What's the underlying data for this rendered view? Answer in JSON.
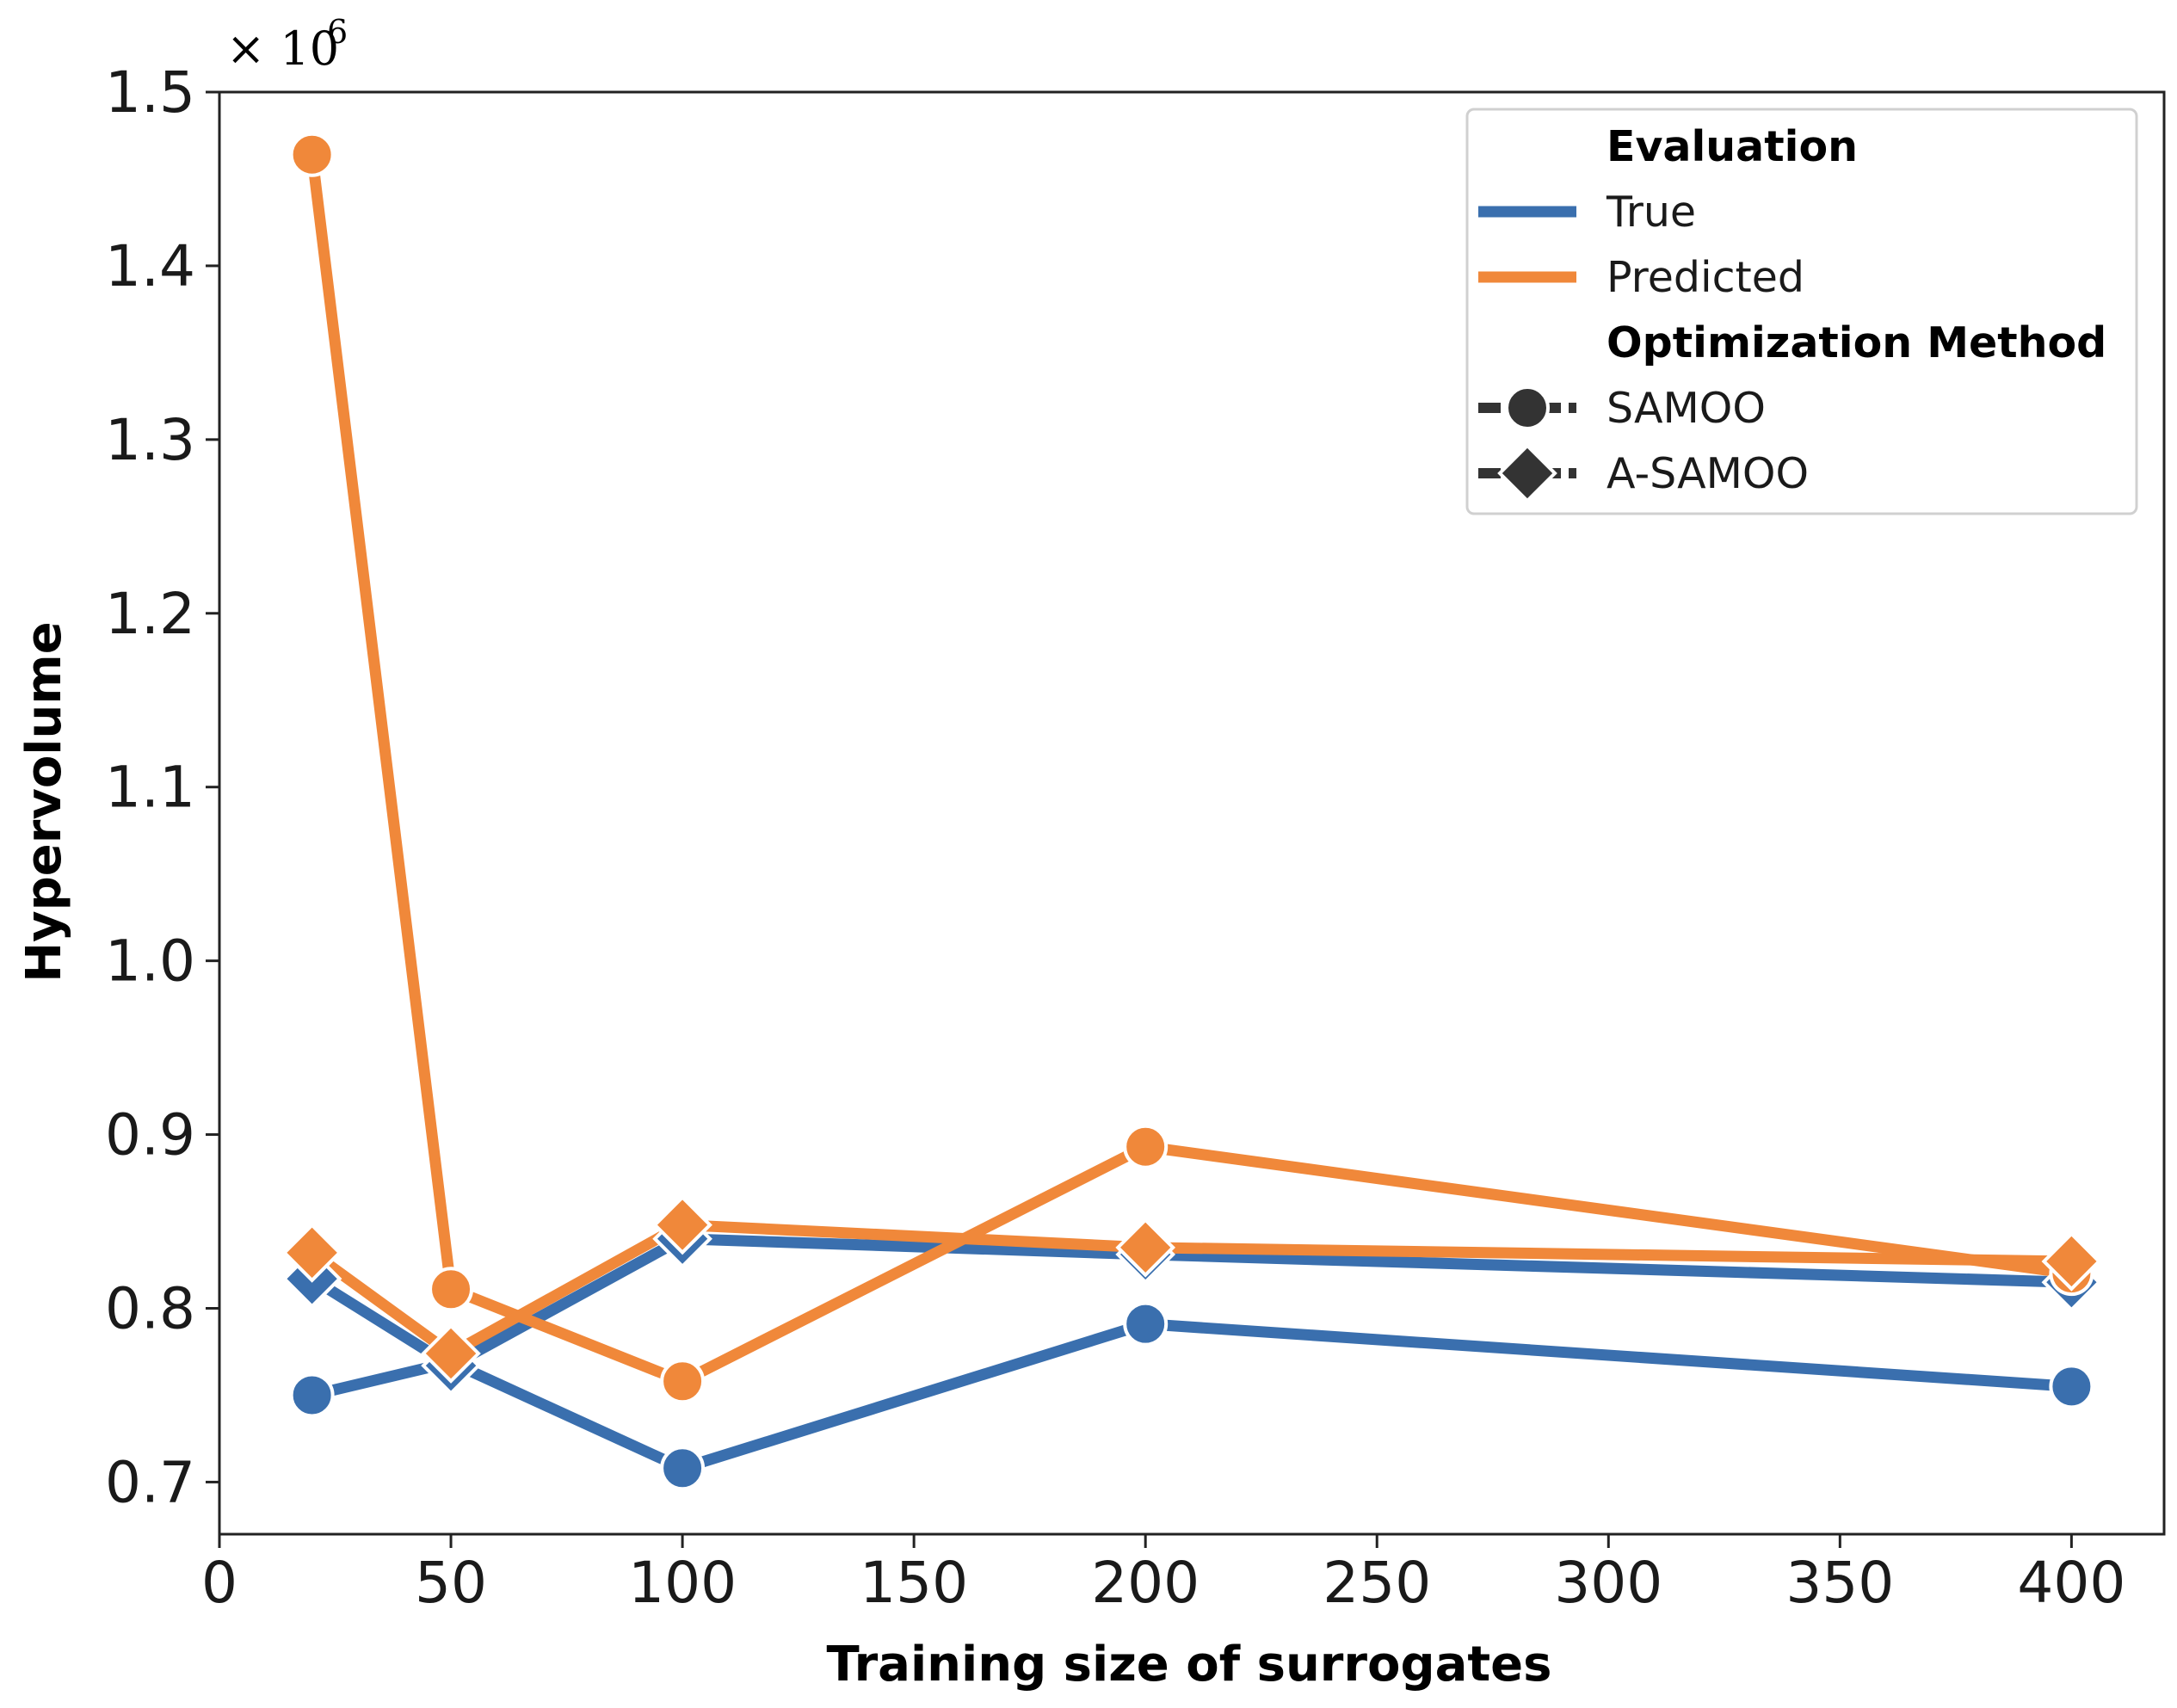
{
  "chart_data": {
    "type": "line",
    "xlabel": "Training size of surrogates",
    "ylabel": "Hypervolume",
    "y_offset_text": "× 10",
    "y_offset_exponent": "6",
    "xlim": [
      0,
      420
    ],
    "ylim": [
      0.67,
      1.5
    ],
    "x_ticks": [
      0,
      50,
      100,
      150,
      200,
      250,
      300,
      350,
      400
    ],
    "y_ticks": [
      0.7,
      0.8,
      0.9,
      1.0,
      1.1,
      1.2,
      1.3,
      1.4,
      1.5
    ],
    "x": [
      20,
      50,
      100,
      200,
      400
    ],
    "series": [
      {
        "evaluation": "True",
        "method": "SAMOO",
        "marker": "circle",
        "color": "#3a6fae",
        "values": [
          0.75,
          0.769,
          0.708,
          0.791,
          0.755
        ]
      },
      {
        "evaluation": "True",
        "method": "A-SAMOO",
        "marker": "diamond",
        "color": "#3a6fae",
        "values": [
          0.817,
          0.767,
          0.84,
          0.831,
          0.815
        ]
      },
      {
        "evaluation": "Predicted",
        "method": "SAMOO",
        "marker": "circle",
        "color": "#f0883a",
        "values": [
          1.464,
          0.811,
          0.758,
          0.893,
          0.82
        ]
      },
      {
        "evaluation": "Predicted",
        "method": "A-SAMOO",
        "marker": "diamond",
        "color": "#f0883a",
        "values": [
          0.832,
          0.774,
          0.848,
          0.835,
          0.827
        ]
      }
    ],
    "legend": {
      "placement": "top-right",
      "sections": [
        {
          "title": "Evaluation",
          "entries": [
            {
              "label": "True",
              "kind": "line",
              "color": "#3a6fae"
            },
            {
              "label": "Predicted",
              "kind": "line",
              "color": "#f0883a"
            }
          ]
        },
        {
          "title": "Optimization Method",
          "entries": [
            {
              "label": "SAMOO",
              "kind": "circle",
              "color": "#333333"
            },
            {
              "label": "A-SAMOO",
              "kind": "diamond",
              "color": "#333333"
            }
          ]
        }
      ]
    }
  }
}
